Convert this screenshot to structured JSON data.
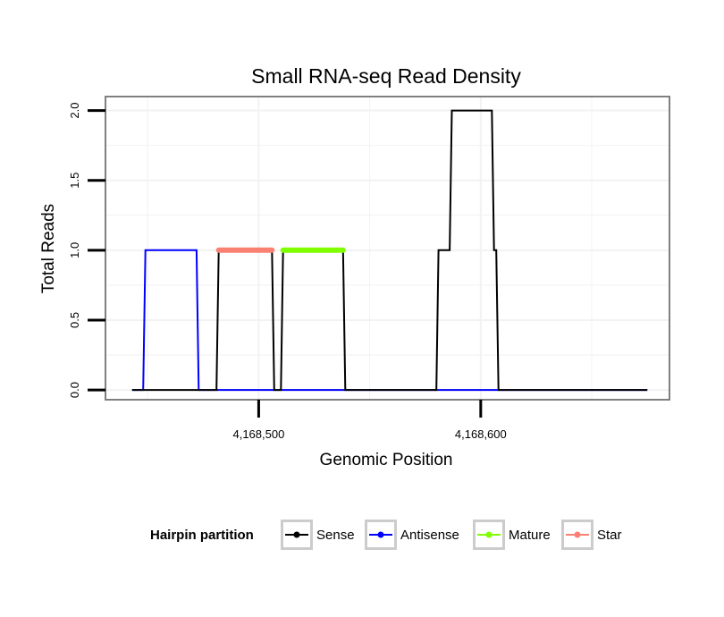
{
  "chart_data": {
    "type": "line",
    "title": "Small RNA-seq Read Density",
    "xlabel": "Genomic Position",
    "ylabel": "Total Reads",
    "xlim": [
      4168431,
      4168685
    ],
    "ylim": [
      -0.07,
      2.1
    ],
    "x_ticks": [
      4168500,
      4168600
    ],
    "x_tick_labels": [
      "4,168,500",
      "4,168,600"
    ],
    "y_ticks": [
      0,
      0.5,
      1,
      1.5,
      2
    ],
    "y_tick_labels": [
      "0.0",
      "0.5",
      "1.0",
      "1.5",
      "2.0"
    ],
    "grid": true,
    "legend": {
      "title": "Hairpin partition",
      "position": "bottom",
      "entries": [
        {
          "name": "Sense",
          "color": "#000000"
        },
        {
          "name": "Antisense",
          "color": "#0000ff"
        },
        {
          "name": "Mature",
          "color": "#7fff00"
        },
        {
          "name": "Star",
          "color": "#fa8072"
        }
      ]
    },
    "series": [
      {
        "name": "Antisense",
        "color": "#0000ff",
        "kind": "line",
        "points": [
          [
            4168443,
            0
          ],
          [
            4168448,
            0
          ],
          [
            4168449,
            1
          ],
          [
            4168472,
            1
          ],
          [
            4168473,
            0
          ],
          [
            4168675,
            0
          ]
        ]
      },
      {
        "name": "Sense",
        "color": "#000000",
        "kind": "line",
        "points": [
          [
            4168443,
            0
          ],
          [
            4168481,
            0
          ],
          [
            4168482,
            1
          ],
          [
            4168506,
            1
          ],
          [
            4168507,
            0
          ],
          [
            4168510,
            0
          ],
          [
            4168511,
            1
          ],
          [
            4168538,
            1
          ],
          [
            4168539,
            0
          ],
          [
            4168580,
            0
          ],
          [
            4168581,
            1
          ],
          [
            4168586,
            1
          ],
          [
            4168587,
            2
          ],
          [
            4168605,
            2
          ],
          [
            4168606,
            1
          ],
          [
            4168607,
            1
          ],
          [
            4168608,
            0
          ],
          [
            4168675,
            0
          ]
        ]
      },
      {
        "name": "Star",
        "color": "#fa8072",
        "kind": "segment",
        "points": [
          [
            4168482,
            1
          ],
          [
            4168506,
            1
          ]
        ]
      },
      {
        "name": "Mature",
        "color": "#7fff00",
        "kind": "segment",
        "points": [
          [
            4168511,
            1
          ],
          [
            4168538,
            1
          ]
        ]
      }
    ]
  }
}
